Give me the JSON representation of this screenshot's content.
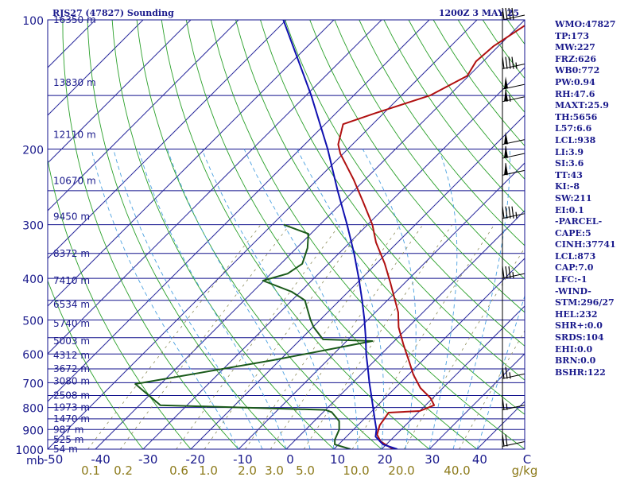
{
  "header": {
    "station": "RJS27 (47827) Sounding",
    "time": "1200Z  3 MAY 25"
  },
  "indices": [
    "WMO:47827",
    "TP:173",
    "MW:227",
    "FRZ:626",
    "WB0:772",
    "PW:0.94",
    "RH:47.6",
    "MAXT:25.9",
    "TH:5656",
    "L57:6.6",
    "LCL:938",
    "LI:3.9",
    "SI:3.6",
    "TT:43",
    "KI:-8",
    "SW:211",
    "EI:0.1",
    "-PARCEL-",
    "CAPE:5",
    "CINH:37741",
    "LCL:873",
    "CAP:7.0",
    "LFC:-1",
    "-WIND-",
    "STM:296/27",
    "HEL:232",
    "SHR+:0.0",
    "SRDS:104",
    "EHI:0.0",
    "BRN:0.0",
    "BSHR:122"
  ],
  "pressure_labels": [
    "100",
    "200",
    "300",
    "400",
    "500",
    "600",
    "700",
    "800",
    "900",
    "1000"
  ],
  "pressure_unit": "mb",
  "temperature_labels": [
    "-50",
    "-40",
    "-30",
    "-20",
    "-10",
    "0",
    "10",
    "20",
    "30",
    "40",
    "C"
  ],
  "mixing_ratio_labels": [
    "0.1",
    "0.2",
    "0.6",
    "1.0",
    "2.0",
    "3.0",
    "5.0",
    "10.0",
    "20.0",
    "40.0",
    "g/kg"
  ],
  "height_labels": [
    "16350 m",
    "13830 m",
    "12110 m",
    "10670 m",
    "9450 m",
    "8372 m",
    "7410 m",
    "6534 m",
    "5740 m",
    "5003 m",
    "4312 m",
    "3672 m",
    "3080 m",
    "2508 m",
    "1973 m",
    "1470 m",
    "987 m",
    "525 m",
    "54 m"
  ],
  "chart_data": {
    "type": "line",
    "chart_kind": "skew-T log-P",
    "y_axis": {
      "quantity": "pressure",
      "unit": "mb",
      "scale": "log",
      "range": [
        1000,
        100
      ]
    },
    "x_axis": {
      "quantity": "temperature",
      "unit": "C",
      "range": [
        -50,
        50
      ]
    },
    "grid": true,
    "colors": {
      "temperature": "#b01010",
      "dewpoint": "#1a5a1a",
      "parcel": "#1010b0",
      "isobar": "#10108c",
      "isotherm": "#2a2a9c",
      "dry_adiabat": "#2aa02a",
      "moist_adiabat": "#4aa0e0",
      "mixing_ratio": "#8c8c5a"
    },
    "series": [
      {
        "key": "temperature",
        "points": [
          {
            "p": 1000,
            "t": 22.4
          },
          {
            "p": 960,
            "t": 18.2
          },
          {
            "p": 925,
            "t": 16.0
          },
          {
            "p": 880,
            "t": 14.6
          },
          {
            "p": 835,
            "t": 14.0
          },
          {
            "p": 822,
            "t": 13.8
          },
          {
            "p": 815,
            "t": 20.0
          },
          {
            "p": 790,
            "t": 21.8
          },
          {
            "p": 760,
            "t": 19.5
          },
          {
            "p": 720,
            "t": 15.3
          },
          {
            "p": 670,
            "t": 11.0
          },
          {
            "p": 620,
            "t": 7.0
          },
          {
            "p": 570,
            "t": 2.6
          },
          {
            "p": 520,
            "t": -2.0
          },
          {
            "p": 480,
            "t": -5.2
          },
          {
            "p": 450,
            "t": -8.4
          },
          {
            "p": 410,
            "t": -13.0
          },
          {
            "p": 370,
            "t": -18.2
          },
          {
            "p": 330,
            "t": -24.5
          },
          {
            "p": 300,
            "t": -29.0
          },
          {
            "p": 265,
            "t": -35.8
          },
          {
            "p": 235,
            "t": -42.5
          },
          {
            "p": 205,
            "t": -50.6
          },
          {
            "p": 195,
            "t": -53.0
          },
          {
            "p": 175,
            "t": -56.2
          },
          {
            "p": 165,
            "t": -51.8
          },
          {
            "p": 150,
            "t": -44.0
          },
          {
            "p": 135,
            "t": -40.3
          },
          {
            "p": 125,
            "t": -41.5
          },
          {
            "p": 115,
            "t": -41.0
          },
          {
            "p": 100,
            "t": -38.2
          }
        ]
      },
      {
        "key": "dewpoint",
        "points": [
          {
            "p": 1000,
            "t": 13.5
          },
          {
            "p": 975,
            "t": 9.2
          },
          {
            "p": 950,
            "t": 8.2
          },
          {
            "p": 900,
            "t": 7.0
          },
          {
            "p": 860,
            "t": 5.2
          },
          {
            "p": 820,
            "t": 1.8
          },
          {
            "p": 810,
            "t": 0.0
          },
          {
            "p": 790,
            "t": -35.6
          },
          {
            "p": 705,
            "t": -45.3
          },
          {
            "p": 620,
            "t": -21.3
          },
          {
            "p": 560,
            "t": -4.6
          },
          {
            "p": 555,
            "t": -15.3
          },
          {
            "p": 520,
            "t": -19.8
          },
          {
            "p": 500,
            "t": -22.0
          },
          {
            "p": 450,
            "t": -27.3
          },
          {
            "p": 430,
            "t": -31.8
          },
          {
            "p": 405,
            "t": -40.2
          },
          {
            "p": 390,
            "t": -36.5
          },
          {
            "p": 370,
            "t": -35.5
          },
          {
            "p": 340,
            "t": -37.7
          },
          {
            "p": 315,
            "t": -40.5
          },
          {
            "p": 300,
            "t": -47.6
          }
        ]
      },
      {
        "key": "parcel",
        "points": [
          {
            "p": 1000,
            "t": 23.3
          },
          {
            "p": 975,
            "t": 19.3
          },
          {
            "p": 935,
            "t": 16.1
          },
          {
            "p": 900,
            "t": 14.8
          },
          {
            "p": 850,
            "t": 12.2
          },
          {
            "p": 800,
            "t": 9.5
          },
          {
            "p": 750,
            "t": 6.6
          },
          {
            "p": 700,
            "t": 3.5
          },
          {
            "p": 650,
            "t": 0.3
          },
          {
            "p": 600,
            "t": -3.2
          },
          {
            "p": 550,
            "t": -6.7
          },
          {
            "p": 500,
            "t": -10.7
          },
          {
            "p": 450,
            "t": -15.3
          },
          {
            "p": 400,
            "t": -20.6
          },
          {
            "p": 350,
            "t": -26.8
          },
          {
            "p": 300,
            "t": -34.3
          },
          {
            "p": 250,
            "t": -43.4
          },
          {
            "p": 200,
            "t": -54.2
          },
          {
            "p": 150,
            "t": -68.9
          },
          {
            "p": 100,
            "t": -90.6
          }
        ]
      }
    ],
    "winds": [
      {
        "p": 985,
        "speed_kt": 20
      },
      {
        "p": 810,
        "speed_kt": 15
      },
      {
        "p": 685,
        "speed_kt": 25
      },
      {
        "p": 400,
        "speed_kt": 35
      },
      {
        "p": 290,
        "speed_kt": 45
      },
      {
        "p": 230,
        "speed_kt": 60
      },
      {
        "p": 210,
        "speed_kt": 60
      },
      {
        "p": 195,
        "speed_kt": 55
      },
      {
        "p": 155,
        "speed_kt": 65
      },
      {
        "p": 145,
        "speed_kt": 50
      },
      {
        "p": 130,
        "speed_kt": 45
      },
      {
        "p": 100,
        "speed_kt": 40
      }
    ]
  }
}
